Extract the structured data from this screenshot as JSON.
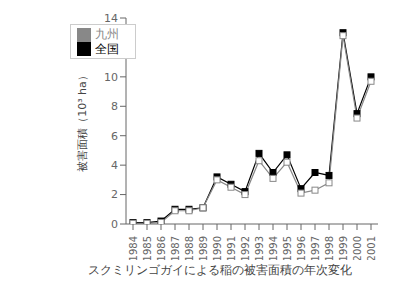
{
  "chart_data": {
    "type": "line",
    "xlabel": "スクミリンゴガイによる稲の被害面積の年次変化",
    "ylabel": "被害面積（10³ ha）",
    "x": [
      1984,
      1985,
      1986,
      1987,
      1988,
      1989,
      1990,
      1991,
      1992,
      1993,
      1994,
      1995,
      1996,
      1997,
      1998,
      1999,
      2000,
      2001
    ],
    "series": [
      {
        "name": "全国",
        "color": "#000000",
        "marker": "square",
        "values": [
          0.1,
          0.1,
          0.2,
          1.0,
          1.0,
          1.1,
          3.2,
          2.7,
          2.2,
          4.8,
          3.5,
          4.7,
          2.4,
          3.5,
          3.3,
          13.0,
          7.5,
          10.0
        ]
      },
      {
        "name": "九州",
        "color": "#888888",
        "marker": "open_square",
        "values": [
          0.05,
          0.05,
          0.1,
          0.9,
          0.9,
          1.1,
          3.0,
          2.5,
          2.0,
          4.3,
          3.1,
          4.2,
          2.1,
          2.3,
          2.8,
          12.8,
          7.2,
          9.7
        ]
      }
    ],
    "xlim": [
      1983.5,
      2001.5
    ],
    "xticks": [
      1984,
      1985,
      1986,
      1987,
      1988,
      1989,
      1990,
      1991,
      1992,
      1993,
      1994,
      1995,
      1996,
      1997,
      1998,
      1999,
      2000,
      2001
    ],
    "ylim": [
      0,
      14
    ],
    "yticks": [
      0,
      2,
      4,
      6,
      8,
      10,
      12,
      14
    ],
    "grid": false,
    "legend": "upper left"
  }
}
